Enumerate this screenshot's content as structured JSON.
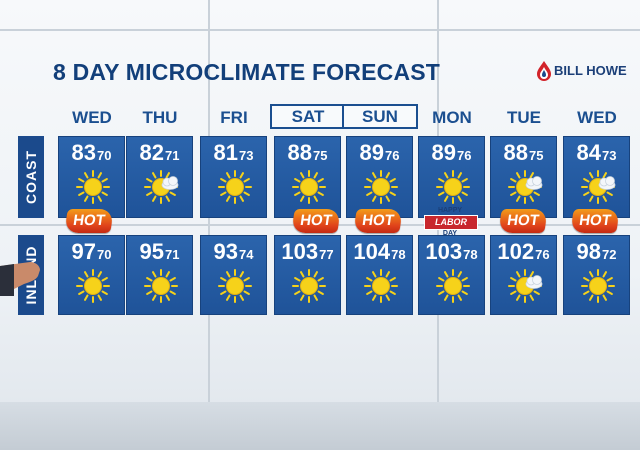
{
  "title": "8 DAY MICROCLIMATE FORECAST",
  "logo": {
    "text": "BILL HOWE",
    "icon": "flame-drop-icon"
  },
  "days": [
    {
      "label": "WED",
      "boxed": false
    },
    {
      "label": "THU",
      "boxed": false
    },
    {
      "label": "FRI",
      "boxed": false
    },
    {
      "label": "SAT",
      "boxed": true
    },
    {
      "label": "SUN",
      "boxed": true
    },
    {
      "label": "MON",
      "boxed": false
    },
    {
      "label": "TUE",
      "boxed": false
    },
    {
      "label": "WED",
      "boxed": false
    }
  ],
  "rows": {
    "coast": {
      "label": "COAST",
      "cells": [
        {
          "hi": "83",
          "lo": "70",
          "icon": "sun-icon"
        },
        {
          "hi": "82",
          "lo": "71",
          "icon": "sun-cloud-icon"
        },
        {
          "hi": "81",
          "lo": "73",
          "icon": "sun-icon"
        },
        {
          "hi": "88",
          "lo": "75",
          "icon": "sun-icon"
        },
        {
          "hi": "89",
          "lo": "76",
          "icon": "sun-icon"
        },
        {
          "hi": "89",
          "lo": "76",
          "icon": "sun-icon"
        },
        {
          "hi": "88",
          "lo": "75",
          "icon": "sun-cloud-icon"
        },
        {
          "hi": "84",
          "lo": "73",
          "icon": "sun-cloud-icon"
        }
      ]
    },
    "inland": {
      "label": "INLAND",
      "cells": [
        {
          "hi": "97",
          "lo": "70",
          "icon": "sun-icon"
        },
        {
          "hi": "95",
          "lo": "71",
          "icon": "sun-icon"
        },
        {
          "hi": "93",
          "lo": "74",
          "icon": "sun-icon"
        },
        {
          "hi": "103",
          "lo": "77",
          "icon": "sun-icon"
        },
        {
          "hi": "104",
          "lo": "78",
          "icon": "sun-icon"
        },
        {
          "hi": "103",
          "lo": "78",
          "icon": "sun-icon"
        },
        {
          "hi": "102",
          "lo": "76",
          "icon": "sun-cloud-icon"
        },
        {
          "hi": "98",
          "lo": "72",
          "icon": "sun-icon"
        }
      ]
    }
  },
  "badges": [
    {
      "day": 0,
      "text": "HOT"
    },
    {
      "day": 3,
      "text": "HOT"
    },
    {
      "day": 4,
      "text": "HOT"
    },
    {
      "day": 6,
      "text": "HOT"
    },
    {
      "day": 7,
      "text": "HOT"
    }
  ],
  "holiday": {
    "happy": "HAPPY",
    "name": "LABOR",
    "day": "DAY"
  },
  "colors": {
    "title": "#123f7a",
    "cell": "#2459a2",
    "sun": "#f6d21a",
    "hot": "#e0421b"
  }
}
